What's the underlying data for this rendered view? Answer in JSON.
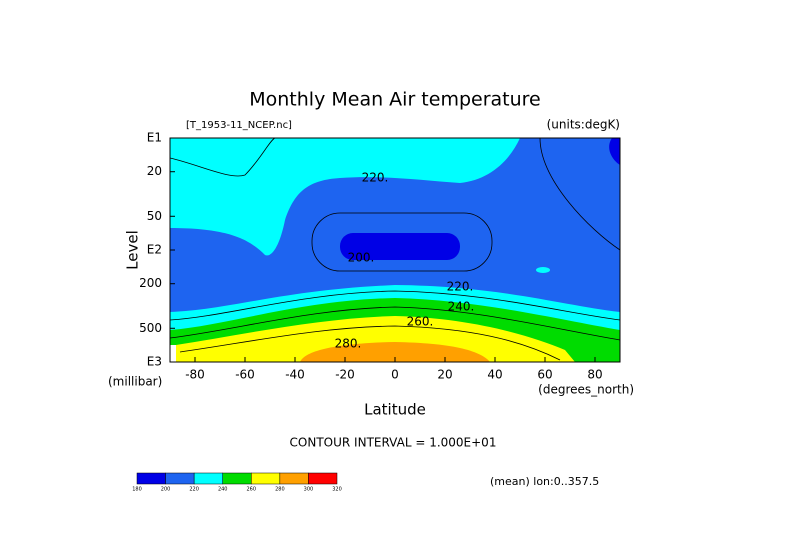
{
  "chart_data": {
    "type": "contour",
    "title": "Monthly Mean Air temperature",
    "file_label": "[T_1953-11_NCEP.nc]",
    "units_label": "(units:degK)",
    "x_label": "Latitude",
    "x_unit_label": "(degrees_north)",
    "y_label": "Level",
    "y_unit_label": "(millibar)",
    "contour_interval": "CONTOUR INTERVAL = 1.000E+01",
    "mean_note": "(mean) lon:0..357.5",
    "xlim": [
      -90,
      90
    ],
    "xticks": [
      -80,
      -60,
      -40,
      -20,
      0,
      20,
      40,
      60,
      80
    ],
    "ylim": [
      1000,
      10
    ],
    "log_scale": true,
    "yticks": [
      {
        "value": 10,
        "label": "E1"
      },
      20,
      50,
      {
        "value": 100,
        "label": "E2"
      },
      200,
      500,
      {
        "value": 1000,
        "label": "E3"
      }
    ],
    "contour_labels": [
      {
        "value": 220,
        "label": "220."
      },
      {
        "value": 200,
        "label": "200."
      },
      {
        "value": 220,
        "label": "220."
      },
      {
        "value": 240,
        "label": "240."
      },
      {
        "value": 260,
        "label": "260."
      },
      {
        "value": 280,
        "label": "280."
      }
    ],
    "colorbar": {
      "levels": [
        180,
        200,
        220,
        240,
        260,
        280,
        300,
        320
      ],
      "colors": [
        "#0000e6",
        "#1e64f0",
        "#00ffff",
        "#00dc00",
        "#ffff00",
        "#ffa000",
        "#ff0000"
      ]
    }
  }
}
